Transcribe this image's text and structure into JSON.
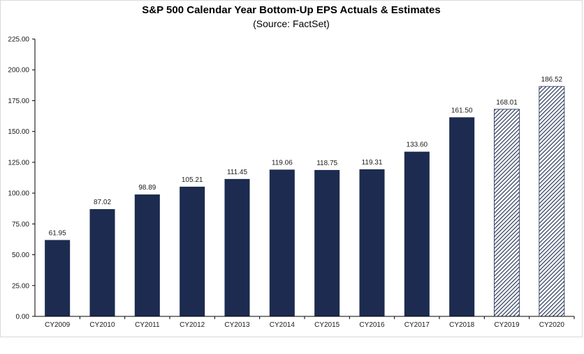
{
  "chart_data": {
    "type": "bar",
    "title": "S&P 500 Calendar Year Bottom-Up EPS Actuals & Estimates",
    "subtitle": "(Source: FactSet)",
    "categories": [
      "CY2009",
      "CY2010",
      "CY2011",
      "CY2012",
      "CY2013",
      "CY2014",
      "CY2015",
      "CY2016",
      "CY2017",
      "CY2018",
      "CY2019",
      "CY2020"
    ],
    "values": [
      61.95,
      87.02,
      98.89,
      105.21,
      111.45,
      119.06,
      118.75,
      119.31,
      133.6,
      161.5,
      168.01,
      186.52
    ],
    "data_labels": [
      "61.95",
      "87.02",
      "98.89",
      "105.21",
      "111.45",
      "119.06",
      "118.75",
      "119.31",
      "133.60",
      "161.50",
      "168.01",
      "186.52"
    ],
    "estimate_flags": [
      false,
      false,
      false,
      false,
      false,
      false,
      false,
      false,
      false,
      false,
      true,
      true
    ],
    "yticks": [
      "0.00",
      "25.00",
      "50.00",
      "75.00",
      "100.00",
      "125.00",
      "150.00",
      "175.00",
      "200.00",
      "225.00"
    ],
    "ylim": [
      0,
      225
    ],
    "xlabel": "",
    "ylabel": "",
    "grid": false,
    "legend": "none",
    "colors": {
      "actual": "#1c2b4f",
      "estimate_stripe": "#1c2b4f",
      "axis": "#000000"
    }
  }
}
